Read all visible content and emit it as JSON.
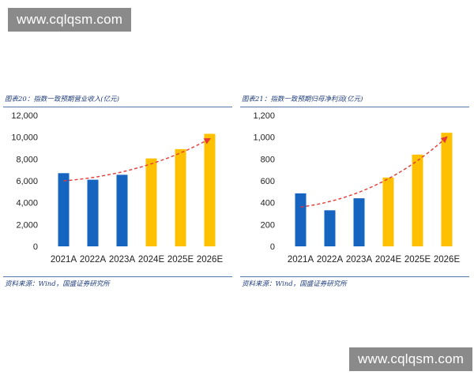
{
  "watermark": {
    "top": "www.cqlqsm.com",
    "bottom": "www.cqlqsm.com"
  },
  "colors": {
    "actual": "#1565c0",
    "estimate": "#ffc000",
    "trend": "#e53935"
  },
  "chart_data": [
    {
      "type": "bar",
      "title": "图表20：指数一致预期营业收入(亿元)",
      "source": "资料来源：Wind，国盛证券研究所",
      "categories": [
        "2021A",
        "2022A",
        "2023A",
        "2024E",
        "2025E",
        "2026E"
      ],
      "values": [
        6700,
        6100,
        6550,
        8050,
        8900,
        10300
      ],
      "bar_types": [
        "actual",
        "actual",
        "actual",
        "estimate",
        "estimate",
        "estimate"
      ],
      "ylim": [
        0,
        12000
      ],
      "yticks": [
        0,
        2000,
        4000,
        6000,
        8000,
        10000,
        12000
      ],
      "ytick_labels": [
        "0",
        "2,000",
        "4,000",
        "6,000",
        "8,000",
        "10,000",
        "12,000"
      ],
      "trend_line": {
        "style": "dashed-arrow",
        "from_value": 6000,
        "to_value": 9850,
        "from_category": "2021A",
        "to_category": "2026E"
      },
      "grid": false
    },
    {
      "type": "bar",
      "title": "图表21：指数一致预期归母净利润(亿元)",
      "source": "资料来源：Wind，国盛证券研究所",
      "categories": [
        "2021A",
        "2022A",
        "2023A",
        "2024E",
        "2025E",
        "2026E"
      ],
      "values": [
        485,
        330,
        440,
        630,
        840,
        1040
      ],
      "bar_types": [
        "actual",
        "actual",
        "actual",
        "estimate",
        "estimate",
        "estimate"
      ],
      "ylim": [
        0,
        1200
      ],
      "yticks": [
        0,
        200,
        400,
        600,
        800,
        1000,
        1200
      ],
      "ytick_labels": [
        "0",
        "200",
        "400",
        "600",
        "800",
        "1,000",
        "1,200"
      ],
      "trend_line": {
        "style": "dashed-arrow",
        "from_value": 360,
        "to_value": 1000,
        "from_category": "2021A",
        "to_category": "2026E"
      },
      "grid": false
    }
  ]
}
